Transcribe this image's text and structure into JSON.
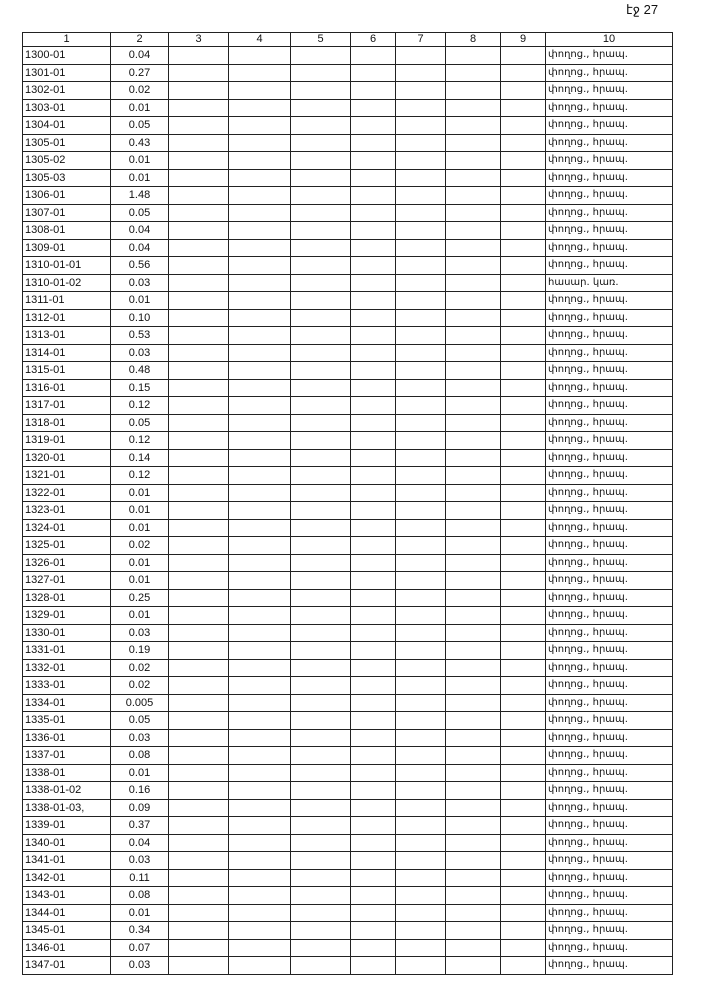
{
  "page_label": "էջ 27",
  "columns": [
    "1",
    "2",
    "3",
    "4",
    "5",
    "6",
    "7",
    "8",
    "9",
    "10"
  ],
  "rows": [
    [
      "1300-01",
      "0.04",
      "փողոց., հրապ."
    ],
    [
      "1301-01",
      "0.27",
      "փողոց., հրապ."
    ],
    [
      "1302-01",
      "0.02",
      "փողոց., հրապ."
    ],
    [
      "1303-01",
      "0.01",
      "փողոց., հրապ."
    ],
    [
      "1304-01",
      "0.05",
      "փողոց., հրապ."
    ],
    [
      "1305-01",
      "0.43",
      "փողոց., հրապ."
    ],
    [
      "1305-02",
      "0.01",
      "փողոց., հրապ."
    ],
    [
      "1305-03",
      "0.01",
      "փողոց., հրապ."
    ],
    [
      "1306-01",
      "1.48",
      "փողոց., հրապ."
    ],
    [
      "1307-01",
      "0.05",
      "փողոց., հրապ."
    ],
    [
      "1308-01",
      "0.04",
      "փողոց., հրապ."
    ],
    [
      "1309-01",
      "0.04",
      "փողոց., հրապ."
    ],
    [
      "1310-01-01",
      "0.56",
      "փողոց., հրապ."
    ],
    [
      "1310-01-02",
      "0.03",
      "հասար. կառ."
    ],
    [
      "1311-01",
      "0.01",
      "փողոց., հրապ."
    ],
    [
      "1312-01",
      "0.10",
      "փողոց., հրապ."
    ],
    [
      "1313-01",
      "0.53",
      "փողոց., հրապ."
    ],
    [
      "1314-01",
      "0.03",
      "փողոց., հրապ."
    ],
    [
      "1315-01",
      "0.48",
      "փողոց., հրապ."
    ],
    [
      "1316-01",
      "0.15",
      "փողոց., հրապ."
    ],
    [
      "1317-01",
      "0.12",
      "փողոց., հրապ."
    ],
    [
      "1318-01",
      "0.05",
      "փողոց., հրապ."
    ],
    [
      "1319-01",
      "0.12",
      "փողոց., հրապ."
    ],
    [
      "1320-01",
      "0.14",
      "փողոց., հրապ."
    ],
    [
      "1321-01",
      "0.12",
      "փողոց., հրապ."
    ],
    [
      "1322-01",
      "0.01",
      "փողոց., հրապ."
    ],
    [
      "1323-01",
      "0.01",
      "փողոց., հրապ."
    ],
    [
      "1324-01",
      "0.01",
      "փողոց., հրապ."
    ],
    [
      "1325-01",
      "0.02",
      "փողոց., հրապ."
    ],
    [
      "1326-01",
      "0.01",
      "փողոց., հրապ."
    ],
    [
      "1327-01",
      "0.01",
      "փողոց., հրապ."
    ],
    [
      "1328-01",
      "0.25",
      "փողոց., հրապ."
    ],
    [
      "1329-01",
      "0.01",
      "փողոց., հրապ."
    ],
    [
      "1330-01",
      "0.03",
      "փողոց., հրապ."
    ],
    [
      "1331-01",
      "0.19",
      "փողոց., հրապ."
    ],
    [
      "1332-01",
      "0.02",
      "փողոց., հրապ."
    ],
    [
      "1333-01",
      "0.02",
      "փողոց., հրապ."
    ],
    [
      "1334-01",
      "0.005",
      "փողոց., հրապ."
    ],
    [
      "1335-01",
      "0.05",
      "փողոց., հրապ."
    ],
    [
      "1336-01",
      "0.03",
      "փողոց., հրապ."
    ],
    [
      "1337-01",
      "0.08",
      "փողոց., հրապ."
    ],
    [
      "1338-01",
      "0.01",
      "փողոց., հրապ."
    ],
    [
      "1338-01-02",
      "0.16",
      "փողոց., հրապ."
    ],
    [
      "1338-01-03,",
      "0.09",
      "փողոց., հրապ."
    ],
    [
      "1339-01",
      "0.37",
      "փողոց., հրապ."
    ],
    [
      "1340-01",
      "0.04",
      "փողոց., հրապ."
    ],
    [
      "1341-01",
      "0.03",
      "փողոց., հրապ."
    ],
    [
      "1342-01",
      "0.11",
      "փողոց., հրապ."
    ],
    [
      "1343-01",
      "0.08",
      "փողոց., հրապ."
    ],
    [
      "1344-01",
      "0.01",
      "փողոց., հրապ."
    ],
    [
      "1345-01",
      "0.34",
      "փողոց., հրապ."
    ],
    [
      "1346-01",
      "0.07",
      "փողոց., հրապ."
    ],
    [
      "1347-01",
      "0.03",
      "փողոց., հրապ."
    ]
  ]
}
